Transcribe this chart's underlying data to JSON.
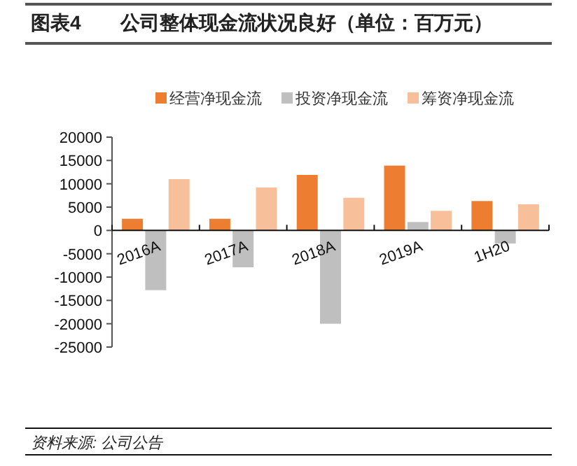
{
  "chart_data": {
    "type": "bar",
    "title": "图表4　　公司整体现金流状况良好（单位：百万元）",
    "categories": [
      "2016A",
      "2017A",
      "2018A",
      "2019A",
      "1H20"
    ],
    "series": [
      {
        "name": "经营净现金流",
        "color": "#ed7d31",
        "values": [
          2500,
          2500,
          11900,
          13900,
          6300
        ]
      },
      {
        "name": "投资净现金流",
        "color": "#bfbfbf",
        "values": [
          -12800,
          -7900,
          -20000,
          1800,
          -2800
        ]
      },
      {
        "name": "筹资净现金流",
        "color": "#f8c09a",
        "values": [
          11000,
          9200,
          7000,
          4200,
          5600
        ]
      }
    ],
    "ylim": [
      -25000,
      20000
    ],
    "yticks": [
      -25000,
      -20000,
      -15000,
      -10000,
      -5000,
      0,
      5000,
      10000,
      15000,
      20000
    ],
    "grid": false,
    "legend": "top",
    "annotations": [
      "资料来源: 公司公告"
    ]
  }
}
